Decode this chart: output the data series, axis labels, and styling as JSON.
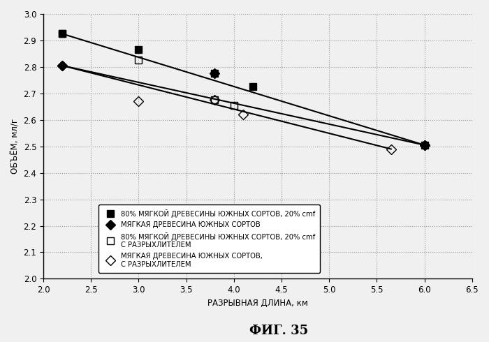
{
  "title": "ФИГ. 35",
  "xlabel": "РАЗРЫВНАЯ ДЛИНА, км",
  "ylabel": "ОБЪЁМ, мл/г",
  "xlim": [
    2.0,
    6.5
  ],
  "ylim": [
    2.0,
    3.0
  ],
  "xticks": [
    2.0,
    2.5,
    3.0,
    3.5,
    4.0,
    4.5,
    5.0,
    5.5,
    6.0,
    6.5
  ],
  "yticks": [
    2.0,
    2.1,
    2.2,
    2.3,
    2.4,
    2.5,
    2.6,
    2.7,
    2.8,
    2.9,
    3.0
  ],
  "series": [
    {
      "label": "80% МЯГКОЙ ДРЕВЕСИНЫ ЮЖНЫХ СОРТОВ, 20% cmf",
      "marker": "s",
      "filled": true,
      "color": "#000000",
      "x": [
        2.2,
        3.0,
        3.8,
        4.2,
        6.0
      ],
      "y": [
        2.925,
        2.865,
        2.775,
        2.725,
        2.505
      ],
      "line": true,
      "line_x": [
        2.2,
        6.0
      ],
      "line_y": [
        2.925,
        2.505
      ]
    },
    {
      "label": "МЯГКАЯ ДРЕВЕСИНА ЮЖНЫХ СОРТОВ",
      "marker": "D",
      "filled": true,
      "color": "#000000",
      "x": [
        2.2,
        3.8,
        6.0
      ],
      "y": [
        2.805,
        2.775,
        2.505
      ],
      "line": true,
      "line_x": [
        2.2,
        6.0
      ],
      "line_y": [
        2.805,
        2.505
      ]
    },
    {
      "label": "80% МЯГКОЙ ДРЕВЕСИНЫ ЮЖНЫХ СОРТОВ, 20% cmf\nС РАЗРЫХЛИТЕЛЕМ",
      "marker": "s",
      "filled": false,
      "color": "#000000",
      "x": [
        2.2,
        3.0,
        3.8,
        4.0
      ],
      "y": [
        2.925,
        2.825,
        2.675,
        2.655
      ],
      "line": false,
      "line_x": null,
      "line_y": null
    },
    {
      "label": "МЯГКАЯ ДРЕВЕСИНА ЮЖНЫХ СОРТОВ,\nС РАЗРЫХЛИТЕЛЕМ",
      "marker": "D",
      "filled": false,
      "color": "#000000",
      "x": [
        2.2,
        3.0,
        3.8,
        4.1,
        5.65,
        6.0
      ],
      "y": [
        2.805,
        2.67,
        2.675,
        2.62,
        2.49,
        2.505
      ],
      "line": true,
      "line_x": [
        2.2,
        5.65
      ],
      "line_y": [
        2.805,
        2.49
      ]
    }
  ],
  "bg_color": "#f0f0f0",
  "grid_color": "#999999",
  "font_size": 8.5,
  "title_font_size": 13
}
